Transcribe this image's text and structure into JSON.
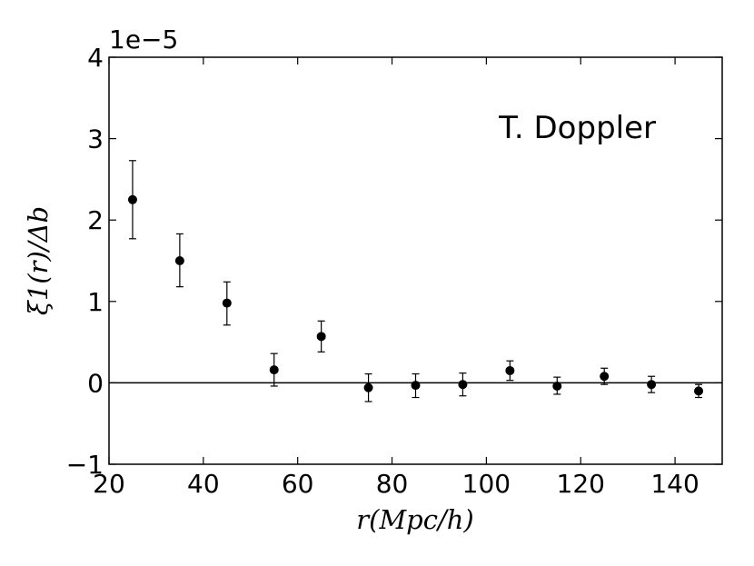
{
  "chart_data": {
    "type": "scatter",
    "title": "",
    "xlabel": "r(Mpc/h)",
    "ylabel": "ξ1(r)/Δb",
    "y_offset_label": "1e−5",
    "annotation": "T. Doppler",
    "xlim": [
      20,
      150
    ],
    "ylim": [
      -1,
      4
    ],
    "y_scale_factor": 1e-05,
    "x_ticks": [
      20,
      40,
      60,
      80,
      100,
      120,
      140
    ],
    "y_ticks": [
      -1,
      0,
      1,
      2,
      3,
      4
    ],
    "x_tick_labels": [
      "20",
      "40",
      "60",
      "80",
      "100",
      "120",
      "140"
    ],
    "y_tick_labels": [
      "−1",
      "0",
      "1",
      "2",
      "3",
      "4"
    ],
    "reference_line_y": 0,
    "grid": false,
    "series": [
      {
        "x": [
          25,
          35,
          45,
          55,
          65,
          75,
          85,
          95,
          105,
          115,
          125,
          135,
          145
        ],
        "y": [
          2.25,
          1.5,
          0.98,
          0.16,
          0.57,
          -0.06,
          -0.03,
          -0.02,
          0.15,
          -0.04,
          0.08,
          -0.02,
          -0.1
        ],
        "err_low": [
          0.48,
          0.32,
          0.27,
          0.2,
          0.19,
          0.17,
          0.15,
          0.14,
          0.12,
          0.1,
          0.1,
          0.1,
          0.08
        ],
        "err_high": [
          0.48,
          0.33,
          0.26,
          0.2,
          0.19,
          0.17,
          0.14,
          0.14,
          0.12,
          0.11,
          0.1,
          0.1,
          0.08
        ],
        "color": "#000000"
      }
    ]
  }
}
